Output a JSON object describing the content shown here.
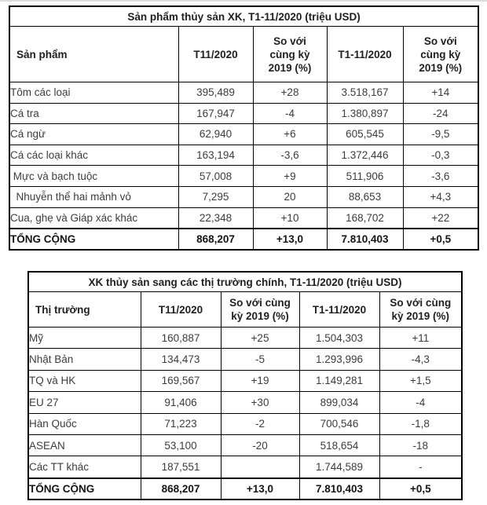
{
  "page": {
    "background": "#ffffff",
    "border_color": "#000000",
    "text_color": "#3c3c3c",
    "header_text_color": "#1f1f1f",
    "top_rule_color": "#dcdcdc"
  },
  "table1": {
    "title": "Sản phẩm thủy sản XK, T1-11/2020 (triệu USD)",
    "col_headers": [
      "Sản phẩm",
      "T11/2020",
      "So với\ncùng kỳ\n2019 (%)",
      "T1-11/2020",
      "So với\ncùng kỳ\n2019 (%)"
    ],
    "rows": [
      [
        "Tôm các loại",
        "395,489",
        "+28",
        "3.518,167",
        "+14"
      ],
      [
        "Cá tra",
        "167,947",
        "-4",
        "1.380,897",
        "-24"
      ],
      [
        "Cá ngừ",
        "62,940",
        "+6",
        "605,545",
        "-9,5"
      ],
      [
        "Cá các loại khác",
        "163,194",
        "-3,6",
        "1.372,446",
        "-0,3"
      ],
      [
        " Mực và bạch tuộc",
        "57,008",
        "+9",
        "511,906",
        "-3,6"
      ],
      [
        "  Nhuyễn thể hai mảnh vỏ",
        "7,295",
        "20",
        "88,653",
        "+4,3"
      ],
      [
        "Cua, ghẹ và Giáp xác khác",
        "22,348",
        "+10",
        "168,702",
        "+22"
      ]
    ],
    "total_row": [
      "TỔNG CỘNG",
      "868,207",
      "+13,0",
      "7.810,403",
      "+0,5"
    ]
  },
  "table2": {
    "title": "XK thủy sản sang các thị trường chính, T1-11/2020 (triệu USD)",
    "col_headers": [
      "Thị trường",
      "T11/2020",
      "So với cùng\nkỳ 2019 (%)",
      "T1-11/2020",
      "So với cùng\nkỳ 2019 (%)"
    ],
    "rows": [
      [
        "Mỹ",
        "160,887",
        "+25",
        "1.504,303",
        "+11"
      ],
      [
        "Nhật Bản",
        "134,473",
        "-5",
        "1.293,996",
        "-4,3"
      ],
      [
        "TQ và HK",
        "169,567",
        "+19",
        "1.149,281",
        "+1,5"
      ],
      [
        "EU 27",
        "91,406",
        "+30",
        "899,034",
        "-4"
      ],
      [
        "Hàn Quốc",
        "71,223",
        "-2",
        "700,546",
        "-1,8"
      ],
      [
        "ASEAN",
        "53,100",
        "-20",
        "518,654",
        "-18"
      ],
      [
        "Các TT khác",
        "187,551",
        "",
        "1.744,589",
        "-"
      ]
    ],
    "total_row": [
      "TỔNG CỘNG",
      "868,207",
      "+13,0",
      "7.810,403",
      "+0,5"
    ]
  }
}
